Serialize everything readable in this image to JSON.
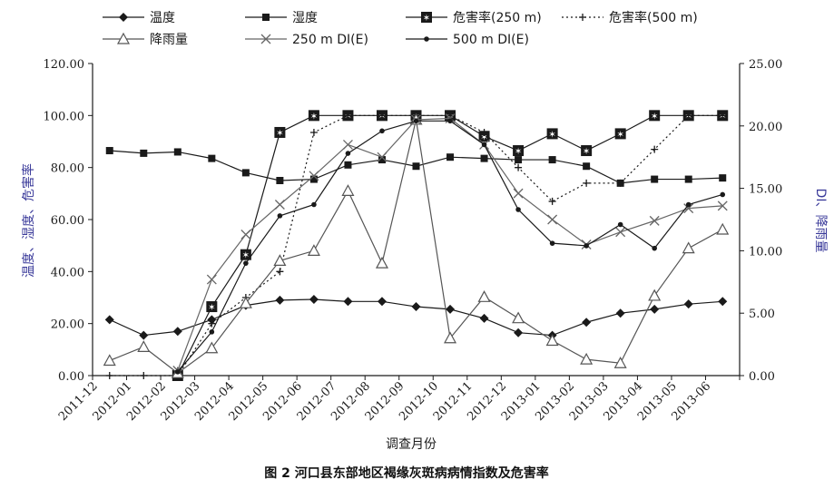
{
  "chart_data": {
    "type": "line",
    "caption": "图 2   河口县东部地区褐缘灰斑病病情指数及危害率",
    "xlabel": "调查月份",
    "ylabel_left": "温度、湿度、危害率",
    "ylabel_right": "DI、降雨量",
    "categories": [
      "2011-12",
      "2012-01",
      "2012-02",
      "2012-03",
      "2012-04",
      "2012-05",
      "2012-06",
      "2012-07",
      "2012-08",
      "2012-09",
      "2012-10",
      "2012-11",
      "2012-12",
      "2013-01",
      "2013-02",
      "2013-03",
      "2013-04",
      "2013-05",
      "2013-06"
    ],
    "ylim_left": [
      0,
      120
    ],
    "ylim_right": [
      0,
      25
    ],
    "yticks_left": [
      "0.00",
      "20.00",
      "40.00",
      "60.00",
      "80.00",
      "100.00",
      "120.00"
    ],
    "yticks_right": [
      "0.00",
      "5.00",
      "10.00",
      "15.00",
      "20.00",
      "25.00"
    ],
    "grid": false,
    "legend_position": "top",
    "legend_items": [
      "温度",
      "湿度",
      "危害率(250 m)",
      "危害率(500 m)",
      "降雨量",
      "250 m DI(E)",
      "500 m DI(E)"
    ],
    "series": [
      {
        "name": "温度",
        "axis": "left",
        "marker": "diamond",
        "line": "solid",
        "color": "#1a1a1a",
        "x": [
          0.5,
          1.5,
          2.5,
          3.5,
          4.5,
          5.5,
          6.5,
          7.5,
          8.5,
          9.5,
          10.5,
          11.5,
          12.5,
          13.5,
          14.5,
          15.5,
          16.5,
          17.5,
          18.5
        ],
        "y": [
          21.5,
          15.5,
          17,
          21.5,
          27,
          29,
          29.3,
          28.5,
          28.5,
          26.5,
          25.5,
          22,
          16.5,
          15.5,
          20.5,
          24,
          25.5,
          27.5,
          28.5
        ]
      },
      {
        "name": "湿度",
        "axis": "left",
        "marker": "square",
        "line": "solid",
        "color": "#1a1a1a",
        "x": [
          0.5,
          1.5,
          2.5,
          3.5,
          4.5,
          5.5,
          6.5,
          7.5,
          8.5,
          9.5,
          10.5,
          11.5,
          12.5,
          13.5,
          14.5,
          15.5,
          16.5,
          17.5,
          18.5
        ],
        "y": [
          86.5,
          85.5,
          86,
          83.5,
          78,
          75,
          75.5,
          81,
          83,
          80.5,
          84,
          83.5,
          83,
          83,
          80.5,
          74,
          75.5,
          75.5,
          76
        ]
      },
      {
        "name": "危害率(250 m)",
        "axis": "left",
        "marker": "boxed-star",
        "line": "solid",
        "color": "#1a1a1a",
        "x": [
          2.5,
          3.5,
          4.5,
          5.5,
          6.5,
          7.5,
          8.5,
          9.5,
          10.5,
          11.5,
          12.5,
          13.5,
          14.5,
          15.5,
          16.5,
          17.5,
          18.5
        ],
        "y": [
          0,
          26.5,
          46.5,
          93.5,
          100,
          100,
          100,
          100,
          100,
          92,
          86.5,
          93,
          86.5,
          93,
          100,
          100,
          100
        ]
      },
      {
        "name": "危害率(500 m)",
        "axis": "left",
        "marker": "plus",
        "line": "dotted",
        "color": "#1a1a1a",
        "x": [
          0.5,
          1.5,
          2.5,
          3.5,
          4.5,
          5.5,
          6.5,
          7.5,
          8.5,
          9.5,
          10.5,
          11.5,
          12.5,
          13.5,
          14.5,
          15.5,
          16.5,
          17.5,
          18.5
        ],
        "y": [
          0,
          0,
          0,
          20,
          30,
          40,
          93.5,
          100,
          100,
          100,
          100,
          93.5,
          80,
          67,
          74,
          74,
          87,
          100,
          100
        ]
      },
      {
        "name": "降雨量",
        "axis": "right",
        "marker": "triangle",
        "line": "solid",
        "color": "#555555",
        "x": [
          0.5,
          1.5,
          2.5,
          3.5,
          4.5,
          5.5,
          6.5,
          7.5,
          8.5,
          9.5,
          10.5,
          11.5,
          12.5,
          13.5,
          14.5,
          15.5,
          16.5,
          17.5,
          18.5
        ],
        "y": [
          1.2,
          2.3,
          0.2,
          2.2,
          5.8,
          9.2,
          10,
          14.8,
          9,
          20.5,
          3,
          6.3,
          4.6,
          2.8,
          1.3,
          1,
          6.4,
          10.2,
          11.7
        ]
      },
      {
        "name": "250 m DI(E)",
        "axis": "right",
        "marker": "x",
        "line": "solid",
        "color": "#666666",
        "x": [
          2.5,
          3.5,
          4.5,
          5.5,
          6.5,
          7.5,
          8.5,
          9.5,
          10.5,
          11.5,
          12.5,
          13.5,
          14.5,
          15.5,
          16.5,
          17.5,
          18.5
        ],
        "y": [
          0.4,
          7.7,
          11.3,
          13.7,
          16,
          18.5,
          17.5,
          20.5,
          20.6,
          18.5,
          14.6,
          12.5,
          10.5,
          11.5,
          12.4,
          13.4,
          13.6
        ]
      },
      {
        "name": "500 m DI(E)",
        "axis": "right",
        "marker": "dot",
        "line": "solid",
        "color": "#1a1a1a",
        "x": [
          2.5,
          3.5,
          4.5,
          5.5,
          6.5,
          7.5,
          8.5,
          9.5,
          10.5,
          11.5,
          12.5,
          13.5,
          14.5,
          15.5,
          16.5,
          17.5,
          18.5
        ],
        "y": [
          0.3,
          3.5,
          9,
          12.8,
          13.7,
          17.8,
          19.6,
          20.4,
          20.4,
          18.5,
          13.3,
          10.6,
          10.4,
          12.1,
          10.2,
          13.7,
          14.5
        ]
      }
    ]
  }
}
